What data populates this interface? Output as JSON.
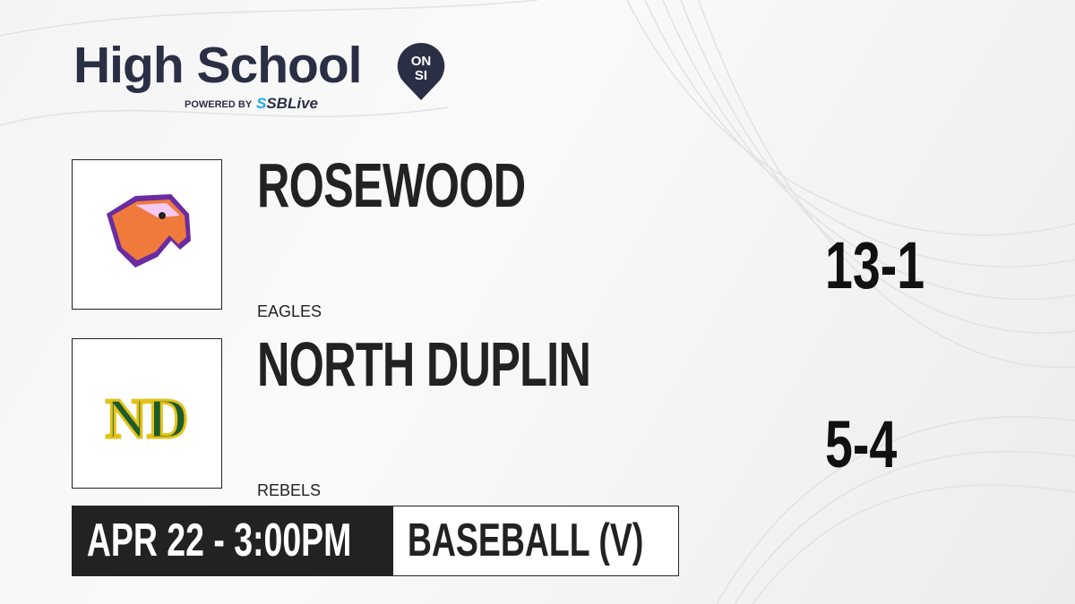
{
  "brand": {
    "title": "High School",
    "badge_top": "ON",
    "badge_bottom": "SI",
    "powered_by": "POWERED BY",
    "partner_prefix": "S",
    "partner": "SBLive"
  },
  "teams": [
    {
      "name": "ROSEWOOD",
      "mascot": "EAGLES",
      "record": "13-1",
      "logo_icon": "eagle-head-icon"
    },
    {
      "name": "NORTH DUPLIN",
      "mascot": "REBELS",
      "record": "5-4",
      "logo_icon": "nd-monogram-icon",
      "logo_text": "ND"
    }
  ],
  "game": {
    "datetime": "APR 22 - 3:00PM",
    "sport": "BASEBALL (V)"
  },
  "colors": {
    "brand_navy": "#2b2f45",
    "sbl_blue": "#1fa9e6",
    "dark": "#222222",
    "nd_green": "#1e5a2a",
    "nd_gold": "#e3c21a",
    "eagle_orange": "#f07a3c",
    "eagle_purple": "#6a2ca0"
  }
}
